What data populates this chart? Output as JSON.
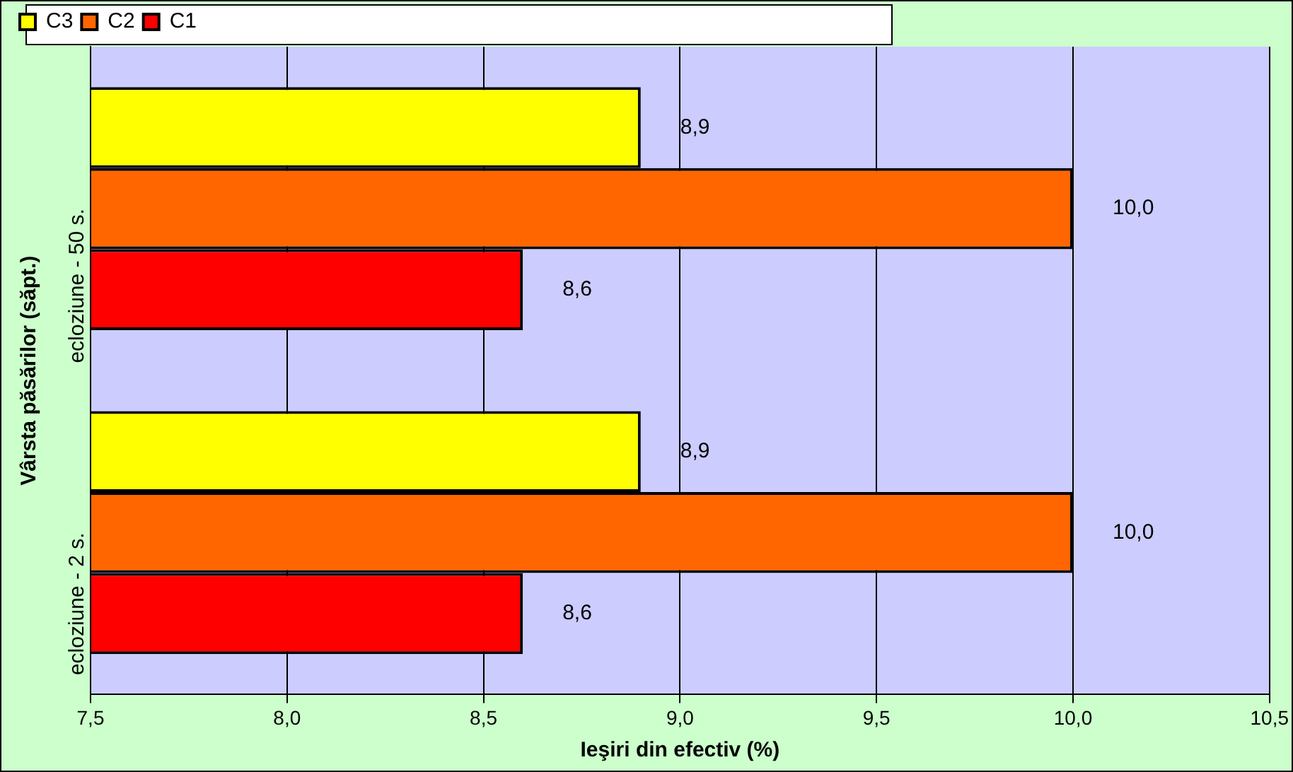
{
  "chart_data": {
    "type": "bar",
    "orientation": "horizontal",
    "xlabel": "Ieşiri din efectiv (%)",
    "ylabel": "Vârsta păsărilor (săpt.)",
    "categories": [
      "ecloziune - 50 s.",
      "ecloziune - 2 s."
    ],
    "series": [
      {
        "name": "C3",
        "color": "#ffff00",
        "values": [
          8.9,
          8.9
        ],
        "value_labels": [
          "8,9",
          "8,9"
        ]
      },
      {
        "name": "C2",
        "color": "#ff6600",
        "values": [
          10.0,
          10.0
        ],
        "value_labels": [
          "10,0",
          "10,0"
        ]
      },
      {
        "name": "C1",
        "color": "#ff0000",
        "values": [
          8.6,
          8.6
        ],
        "value_labels": [
          "8,6",
          "8,6"
        ]
      }
    ],
    "xlim": [
      7.5,
      10.5
    ],
    "xticks": [
      {
        "value": 7.5,
        "label": "7,5"
      },
      {
        "value": 8.0,
        "label": "8,0"
      },
      {
        "value": 8.5,
        "label": "8,5"
      },
      {
        "value": 9.0,
        "label": "9,0"
      },
      {
        "value": 9.5,
        "label": "9,5"
      },
      {
        "value": 10.0,
        "label": "10,0"
      },
      {
        "value": 10.5,
        "label": "10,5"
      }
    ],
    "grid": "x",
    "legend": "top"
  }
}
